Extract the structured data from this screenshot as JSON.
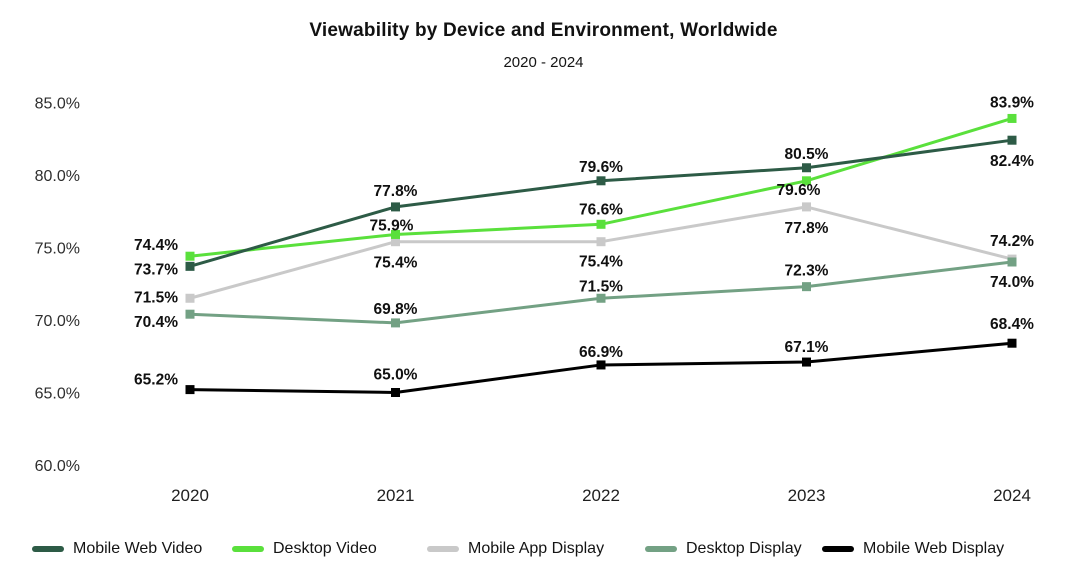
{
  "page": {
    "background": "#ffffff"
  },
  "chart_data": {
    "type": "line",
    "title": "Viewability by Device and Environment, Worldwide",
    "subtitle": "2020 - 2024",
    "x_categories": [
      "2020",
      "2021",
      "2022",
      "2023",
      "2024"
    ],
    "y_axis": {
      "ticks": [
        {
          "label": "85.0%",
          "value": 85
        },
        {
          "label": "80.0%",
          "value": 80
        },
        {
          "label": "75.0%",
          "value": 75
        },
        {
          "label": "70.0%",
          "value": 70
        },
        {
          "label": "65.0%",
          "value": 65
        },
        {
          "label": "60.0%",
          "value": 60
        }
      ],
      "range": [
        60,
        85
      ],
      "grid": false
    },
    "legend_position": "bottom",
    "value_suffix": "%",
    "series": [
      {
        "name": "Mobile Web Video",
        "color": "#2d5b46",
        "values": [
          73.7,
          77.8,
          79.6,
          80.5,
          82.4
        ],
        "point_labels": [
          "73.7%",
          "77.8%",
          "79.6%",
          "80.5%",
          "82.4%"
        ],
        "label_placements": [
          [
            -12,
            8,
            "e"
          ],
          [
            0,
            -11,
            "m"
          ],
          [
            0,
            -9,
            "m"
          ],
          [
            0,
            -9,
            "m"
          ],
          [
            0,
            26,
            "m"
          ]
        ]
      },
      {
        "name": "Desktop Video",
        "color": "#5ae03c",
        "values": [
          74.4,
          75.9,
          76.6,
          79.6,
          83.9
        ],
        "point_labels": [
          "74.4%",
          "75.9%",
          "76.6%",
          "79.6%",
          "83.9%"
        ],
        "label_placements": [
          [
            -12,
            -6,
            "e"
          ],
          [
            -4,
            -4,
            "m"
          ],
          [
            0,
            -10,
            "m"
          ],
          [
            -8,
            14,
            "m"
          ],
          [
            0,
            -11,
            "m"
          ]
        ]
      },
      {
        "name": "Mobile App Display",
        "color": "#c9c9c9",
        "values": [
          71.5,
          75.4,
          75.4,
          77.8,
          74.2
        ],
        "point_labels": [
          "71.5%",
          "75.4%",
          "75.4%",
          "77.8%",
          "74.2%"
        ],
        "label_placements": [
          [
            -12,
            4,
            "e"
          ],
          [
            0,
            26,
            "m"
          ],
          [
            0,
            25,
            "m"
          ],
          [
            0,
            26,
            "m"
          ],
          [
            0,
            -13,
            "m"
          ]
        ]
      },
      {
        "name": "Desktop Display",
        "color": "#73a184",
        "values": [
          70.4,
          69.8,
          71.5,
          72.3,
          74.0
        ],
        "point_labels": [
          "70.4%",
          "69.8%",
          "71.5%",
          "72.3%",
          "74.0%"
        ],
        "label_placements": [
          [
            -12,
            13,
            "e"
          ],
          [
            0,
            -9,
            "m"
          ],
          [
            0,
            -7,
            "m"
          ],
          [
            0,
            -11,
            "m"
          ],
          [
            0,
            25,
            "m"
          ]
        ]
      },
      {
        "name": "Mobile Web Display",
        "color": "#000000",
        "values": [
          65.2,
          65.0,
          66.9,
          67.1,
          68.4
        ],
        "point_labels": [
          "65.2%",
          "65.0%",
          "66.9%",
          "67.1%",
          "68.4%"
        ],
        "label_placements": [
          [
            -12,
            -5,
            "e"
          ],
          [
            0,
            -13,
            "m"
          ],
          [
            0,
            -8,
            "m"
          ],
          [
            0,
            -10,
            "m"
          ],
          [
            0,
            -14,
            "m"
          ]
        ]
      }
    ]
  }
}
